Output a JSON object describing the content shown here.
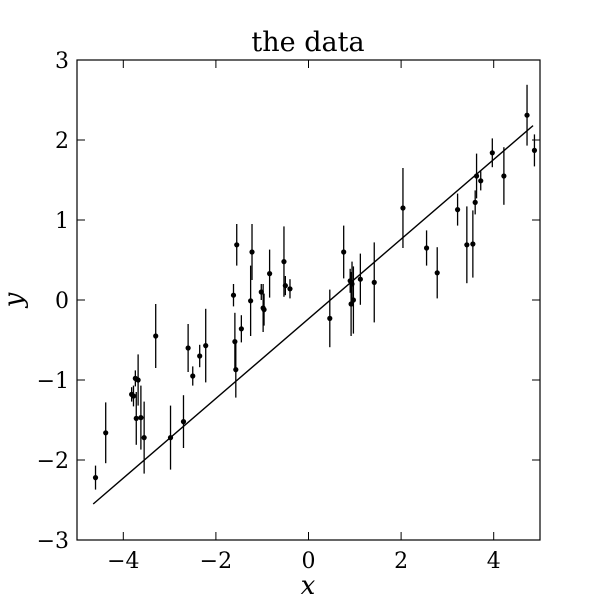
{
  "chart_data": {
    "type": "scatter",
    "title": "the data",
    "xlabel": "x",
    "ylabel": "y",
    "xlim": [
      -5,
      5
    ],
    "ylim": [
      -3,
      3
    ],
    "xticks": [
      -4,
      -2,
      0,
      2,
      4
    ],
    "yticks": [
      -3,
      -2,
      -1,
      0,
      1,
      2,
      3
    ],
    "xtick_labels": [
      "−4",
      "−2",
      "0",
      "2",
      "4"
    ],
    "ytick_labels": [
      "−3",
      "−2",
      "−1",
      "0",
      "1",
      "2",
      "3"
    ],
    "grid": false,
    "legend": "none",
    "points": [
      {
        "x": -4.6,
        "y": -2.22,
        "err": 0.15
      },
      {
        "x": -4.38,
        "y": -1.66,
        "err": 0.38
      },
      {
        "x": -3.82,
        "y": -1.18,
        "err": 0.09
      },
      {
        "x": -3.78,
        "y": -1.2,
        "err": 0.13
      },
      {
        "x": -3.74,
        "y": -0.98,
        "err": 0.1
      },
      {
        "x": -3.72,
        "y": -1.48,
        "err": 0.33
      },
      {
        "x": -3.68,
        "y": -1.0,
        "err": 0.32
      },
      {
        "x": -3.62,
        "y": -1.47,
        "err": 0.4
      },
      {
        "x": -3.55,
        "y": -1.72,
        "err": 0.45
      },
      {
        "x": -3.3,
        "y": -0.45,
        "err": 0.4
      },
      {
        "x": -2.98,
        "y": -1.72,
        "err": 0.4
      },
      {
        "x": -2.7,
        "y": -1.52,
        "err": 0.33
      },
      {
        "x": -2.6,
        "y": -0.6,
        "err": 0.3
      },
      {
        "x": -2.5,
        "y": -0.95,
        "err": 0.12
      },
      {
        "x": -2.35,
        "y": -0.7,
        "err": 0.14
      },
      {
        "x": -2.22,
        "y": -0.57,
        "err": 0.46
      },
      {
        "x": -1.62,
        "y": 0.06,
        "err": 0.14
      },
      {
        "x": -1.59,
        "y": -0.52,
        "err": 0.36
      },
      {
        "x": -1.57,
        "y": -0.87,
        "err": 0.35
      },
      {
        "x": -1.55,
        "y": 0.69,
        "err": 0.26
      },
      {
        "x": -1.45,
        "y": -0.36,
        "err": 0.17
      },
      {
        "x": -1.25,
        "y": -0.01,
        "err": 0.44
      },
      {
        "x": -1.22,
        "y": 0.6,
        "err": 0.35
      },
      {
        "x": -1.02,
        "y": 0.1,
        "err": 0.1
      },
      {
        "x": -0.98,
        "y": -0.1,
        "err": 0.3
      },
      {
        "x": -0.96,
        "y": -0.12,
        "err": 0.2
      },
      {
        "x": -0.84,
        "y": 0.33,
        "err": 0.3
      },
      {
        "x": -0.53,
        "y": 0.48,
        "err": 0.44
      },
      {
        "x": -0.5,
        "y": 0.18,
        "err": 0.12
      },
      {
        "x": -0.4,
        "y": 0.14,
        "err": 0.12
      },
      {
        "x": 0.46,
        "y": -0.23,
        "err": 0.36
      },
      {
        "x": 0.76,
        "y": 0.6,
        "err": 0.33
      },
      {
        "x": 0.9,
        "y": 0.24,
        "err": 0.15
      },
      {
        "x": 0.92,
        "y": -0.05,
        "err": 0.4
      },
      {
        "x": 0.94,
        "y": 0.2,
        "err": 0.28
      },
      {
        "x": 0.97,
        "y": 0.0,
        "err": 0.42
      },
      {
        "x": 1.12,
        "y": 0.26,
        "err": 0.32
      },
      {
        "x": 1.42,
        "y": 0.22,
        "err": 0.5
      },
      {
        "x": 2.04,
        "y": 1.15,
        "err": 0.5
      },
      {
        "x": 2.55,
        "y": 0.65,
        "err": 0.22
      },
      {
        "x": 2.78,
        "y": 0.34,
        "err": 0.32
      },
      {
        "x": 3.22,
        "y": 1.13,
        "err": 0.2
      },
      {
        "x": 3.42,
        "y": 0.69,
        "err": 0.48
      },
      {
        "x": 3.55,
        "y": 0.7,
        "err": 0.42
      },
      {
        "x": 3.6,
        "y": 1.22,
        "err": 0.15
      },
      {
        "x": 3.63,
        "y": 1.55,
        "err": 0.28
      },
      {
        "x": 3.72,
        "y": 1.49,
        "err": 0.12
      },
      {
        "x": 3.97,
        "y": 1.84,
        "err": 0.18
      },
      {
        "x": 4.22,
        "y": 1.55,
        "err": 0.36
      },
      {
        "x": 4.72,
        "y": 2.31,
        "err": 0.38
      },
      {
        "x": 4.88,
        "y": 1.87,
        "err": 0.2
      }
    ],
    "fit_line": {
      "x": [
        -4.65,
        4.85
      ],
      "y": [
        -2.55,
        2.18
      ]
    }
  }
}
